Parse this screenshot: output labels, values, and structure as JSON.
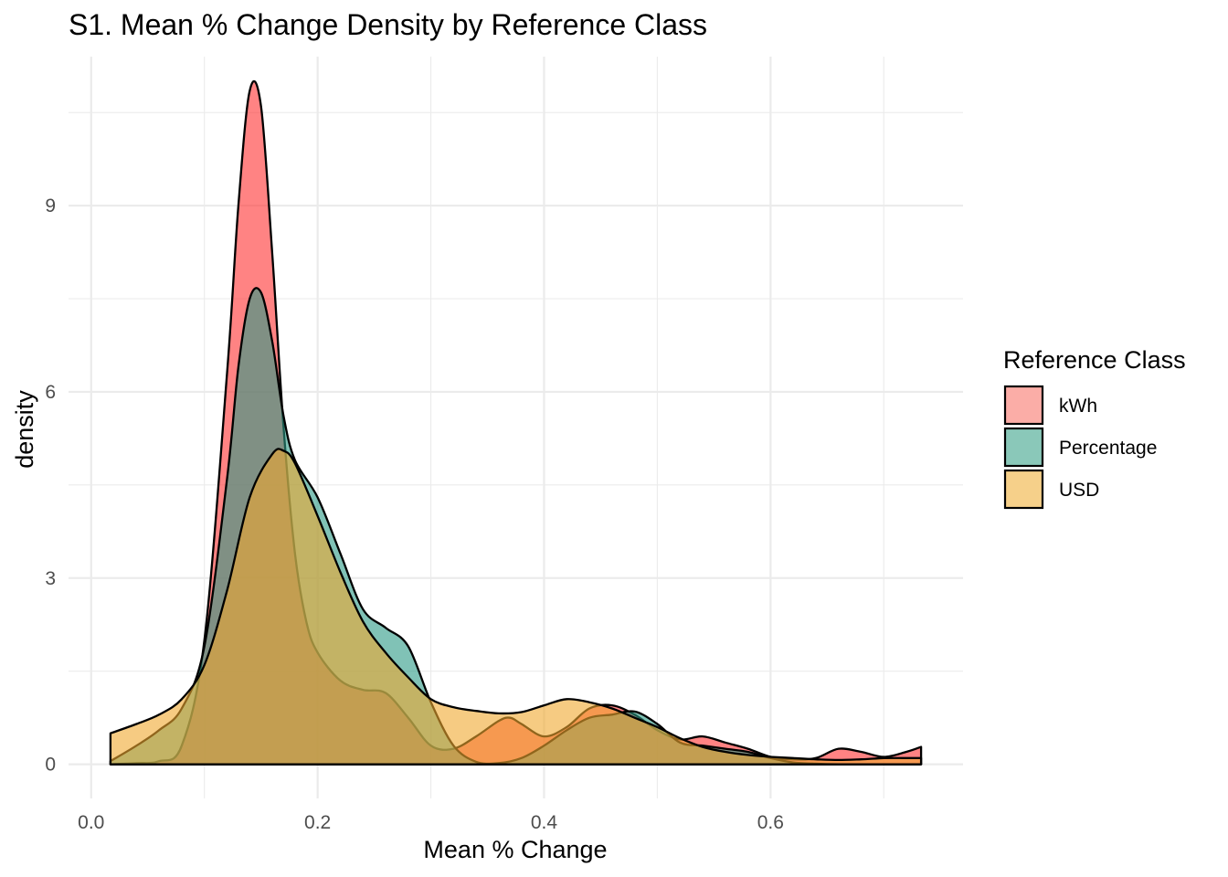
{
  "chart_data": {
    "type": "area",
    "title": "S1. Mean % Change Density by Reference Class",
    "xlabel": "Mean % Change",
    "ylabel": "density",
    "xlim": [
      -0.02,
      0.77
    ],
    "ylim": [
      -0.55,
      11.4
    ],
    "x_ticks": [
      0.0,
      0.2,
      0.4,
      0.6
    ],
    "x_tick_labels": [
      "0.0",
      "0.2",
      "0.4",
      "0.6"
    ],
    "y_ticks": [
      0,
      3,
      6,
      9
    ],
    "y_tick_labels": [
      "0",
      "3",
      "6",
      "9"
    ],
    "grid": true,
    "legend": {
      "title": "Reference Class",
      "position": "right",
      "entries": [
        {
          "label": "kWh",
          "color": "#F8766D"
        },
        {
          "label": "Percentage",
          "color": "#3CA38B"
        },
        {
          "label": "USD",
          "color": "#F0B03C"
        }
      ]
    },
    "series": [
      {
        "name": "kWh",
        "color": "#FF3030",
        "x": [
          0.017,
          0.04,
          0.06,
          0.08,
          0.1,
          0.12,
          0.13,
          0.14,
          0.15,
          0.16,
          0.17,
          0.18,
          0.19,
          0.2,
          0.22,
          0.24,
          0.26,
          0.28,
          0.3,
          0.32,
          0.34,
          0.36,
          0.37,
          0.38,
          0.4,
          0.42,
          0.44,
          0.46,
          0.48,
          0.5,
          0.52,
          0.54,
          0.56,
          0.58,
          0.6,
          0.62,
          0.64,
          0.66,
          0.68,
          0.7,
          0.72,
          0.733
        ],
        "y": [
          0.0,
          0.02,
          0.05,
          0.3,
          2.0,
          6.3,
          9.0,
          10.85,
          10.6,
          8.2,
          5.4,
          3.4,
          2.3,
          1.8,
          1.35,
          1.2,
          1.15,
          0.75,
          0.3,
          0.25,
          0.45,
          0.7,
          0.75,
          0.65,
          0.45,
          0.6,
          0.9,
          0.95,
          0.8,
          0.55,
          0.4,
          0.45,
          0.35,
          0.25,
          0.12,
          0.08,
          0.1,
          0.25,
          0.2,
          0.12,
          0.2,
          0.28
        ]
      },
      {
        "name": "Percentage",
        "color": "#2B9A86",
        "x": [
          0.017,
          0.04,
          0.06,
          0.08,
          0.1,
          0.12,
          0.13,
          0.14,
          0.15,
          0.16,
          0.17,
          0.18,
          0.2,
          0.22,
          0.24,
          0.26,
          0.28,
          0.3,
          0.32,
          0.34,
          0.36,
          0.38,
          0.4,
          0.42,
          0.44,
          0.46,
          0.48,
          0.5,
          0.52,
          0.54,
          0.56,
          0.58,
          0.6,
          0.62,
          0.64,
          0.66,
          0.68,
          0.7,
          0.72,
          0.733
        ],
        "y": [
          0.05,
          0.3,
          0.55,
          0.9,
          1.9,
          4.6,
          6.4,
          7.5,
          7.6,
          6.8,
          5.6,
          4.9,
          4.3,
          3.4,
          2.5,
          2.2,
          1.9,
          1.0,
          0.3,
          0.04,
          0.02,
          0.1,
          0.3,
          0.55,
          0.75,
          0.8,
          0.85,
          0.65,
          0.35,
          0.3,
          0.25,
          0.2,
          0.1,
          0.03,
          0.01,
          0.0,
          0.0,
          0.0,
          0.0,
          0.0
        ]
      },
      {
        "name": "USD",
        "color": "#F0A92E",
        "x": [
          0.017,
          0.04,
          0.06,
          0.08,
          0.1,
          0.12,
          0.14,
          0.16,
          0.17,
          0.18,
          0.2,
          0.22,
          0.24,
          0.26,
          0.28,
          0.3,
          0.32,
          0.34,
          0.36,
          0.38,
          0.4,
          0.42,
          0.44,
          0.46,
          0.48,
          0.5,
          0.52,
          0.54,
          0.56,
          0.58,
          0.6,
          0.62,
          0.64,
          0.66,
          0.68,
          0.7,
          0.72,
          0.733
        ],
        "y": [
          0.5,
          0.65,
          0.8,
          1.05,
          1.6,
          2.8,
          4.3,
          5.0,
          5.05,
          4.85,
          4.0,
          3.1,
          2.3,
          1.8,
          1.4,
          1.05,
          0.92,
          0.86,
          0.82,
          0.84,
          0.95,
          1.05,
          1.0,
          0.9,
          0.75,
          0.6,
          0.42,
          0.28,
          0.2,
          0.15,
          0.12,
          0.1,
          0.08,
          0.07,
          0.08,
          0.1,
          0.1,
          0.1
        ]
      }
    ]
  }
}
